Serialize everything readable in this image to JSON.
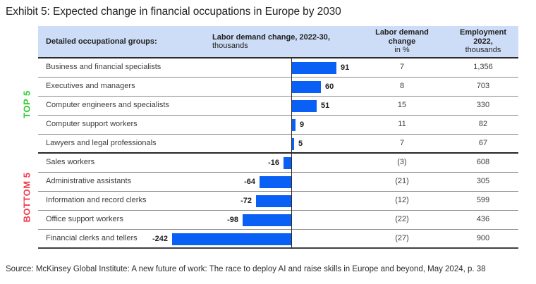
{
  "title": "Exhibit 5: Expected change in financial occupations in Europe by 2030",
  "source": "Source: McKinsey Global Institute: A new future of work: The race to deploy AI and raise skills in Europe and beyond, May 2024, p. 38",
  "colors": {
    "bar": "#0a5ff5",
    "header_bg": "#cdddf7",
    "top5": "#2fcb2f",
    "bottom5": "#f43b4c"
  },
  "group_labels": {
    "top": "TOP 5",
    "bottom": "BOTTOM 5"
  },
  "header": {
    "col1": "Detailed occupational groups:",
    "col2_bold": "Labor demand change, 2022-30,",
    "col2_unit": "thousands",
    "col3_bold_line1": "Labor demand",
    "col3_bold_line2": "change",
    "col3_unit": "in %",
    "col4_bold_line1": "Employment",
    "col4_bold_line2": "2022,",
    "col4_unit": "thousands"
  },
  "rows": [
    {
      "label": "Business and financial specialists",
      "change": 91,
      "pct": "7",
      "employment": "1,356",
      "group": "top"
    },
    {
      "label": "Executives and managers",
      "change": 60,
      "pct": "8",
      "employment": "703",
      "group": "top"
    },
    {
      "label": "Computer engineers and specialists",
      "change": 51,
      "pct": "15",
      "employment": "330",
      "group": "top"
    },
    {
      "label": "Computer support workers",
      "change": 9,
      "pct": "11",
      "employment": "82",
      "group": "top"
    },
    {
      "label": "Lawyers and legal professionals",
      "change": 5,
      "pct": "7",
      "employment": "67",
      "group": "top"
    },
    {
      "label": "Sales workers",
      "change": -16,
      "pct": "(3)",
      "employment": "608",
      "group": "bottom"
    },
    {
      "label": "Administrative assistants",
      "change": -64,
      "pct": "(21)",
      "employment": "305",
      "group": "bottom"
    },
    {
      "label": "Information and record clerks",
      "change": -72,
      "pct": "(12)",
      "employment": "599",
      "group": "bottom"
    },
    {
      "label": "Office support workers",
      "change": -98,
      "pct": "(22)",
      "employment": "436",
      "group": "bottom"
    },
    {
      "label": "Financial clerks and tellers",
      "change": -242,
      "pct": "(27)",
      "employment": "900",
      "group": "bottom"
    }
  ],
  "chart_data": {
    "type": "bar",
    "orientation": "horizontal",
    "title": "Exhibit 5: Expected change in financial occupations in Europe by 2030",
    "categories": [
      "Business and financial specialists",
      "Executives and managers",
      "Computer engineers and specialists",
      "Computer support workers",
      "Lawyers and legal professionals",
      "Sales workers",
      "Administrative assistants",
      "Information and record clerks",
      "Office support workers",
      "Financial clerks and tellers"
    ],
    "series": [
      {
        "name": "Labor demand change, 2022-30, thousands",
        "values": [
          91,
          60,
          51,
          9,
          5,
          -16,
          -64,
          -72,
          -98,
          -242
        ]
      },
      {
        "name": "Labor demand change in %",
        "values": [
          7,
          8,
          15,
          11,
          7,
          -3,
          -21,
          -12,
          -22,
          -27
        ]
      },
      {
        "name": "Employment 2022, thousands",
        "values": [
          1356,
          703,
          330,
          82,
          67,
          608,
          305,
          599,
          436,
          900
        ]
      }
    ],
    "xlim": [
      -260,
      130
    ],
    "grid": false,
    "legend_position": "none",
    "annotations": [
      "TOP 5 (rows 1-5, green)",
      "BOTTOM 5 (rows 6-10, red)"
    ],
    "negative_pct_shown_in_parentheses": true
  }
}
